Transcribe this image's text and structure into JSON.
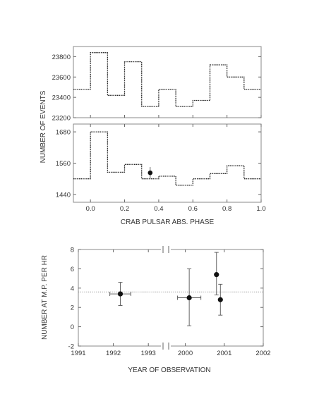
{
  "chart_data": [
    {
      "type": "step",
      "ylabel": "NUMBER OF EVENTS",
      "xlabel": "CRAB PULSAR  ABS. PHASE",
      "xlim": [
        -0.1,
        1.0
      ],
      "x_ticks": [
        "0.0",
        "0.2",
        "0.4",
        "0.6",
        "0.8",
        "1.0"
      ],
      "panels": [
        {
          "name": "upper",
          "ylim": [
            23200,
            23900
          ],
          "y_ticks": [
            "23800",
            "23600",
            "23400",
            "23200"
          ],
          "bin_edges": [
            -0.1,
            0.0,
            0.1,
            0.2,
            0.3,
            0.4,
            0.5,
            0.6,
            0.7,
            0.8,
            0.9,
            1.0
          ],
          "values": [
            23480,
            23840,
            23420,
            23750,
            23310,
            23480,
            23310,
            23370,
            23720,
            23600,
            23480
          ]
        },
        {
          "name": "lower",
          "ylim": [
            1410,
            1710
          ],
          "y_ticks": [
            "1680",
            "1560",
            "1440"
          ],
          "bin_edges": [
            -0.1,
            0.0,
            0.1,
            0.2,
            0.3,
            0.4,
            0.5,
            0.6,
            0.7,
            0.8,
            0.9,
            1.0
          ],
          "values": [
            1500,
            1680,
            1525,
            1555,
            1500,
            1510,
            1475,
            1500,
            1520,
            1550,
            1500
          ],
          "point": {
            "x": 0.35,
            "y": 1523,
            "yerr": 22
          }
        }
      ]
    },
    {
      "type": "scatter",
      "ylabel": "NUMBER AT M.P. PER HR",
      "xlabel": "YEAR OF OBSERVATION",
      "ylim": [
        -2,
        8
      ],
      "y_ticks": [
        "8",
        "6",
        "4",
        "2",
        "0",
        "-2"
      ],
      "x_ticks": [
        "1991",
        "1992",
        "1993",
        "2000",
        "2001",
        "2002"
      ],
      "reference_level": 3.6,
      "points": [
        {
          "x": "1992.2",
          "y": 3.4,
          "xerr": 0.3,
          "yerr_low": 1.2,
          "yerr_high": 1.2
        },
        {
          "x": "2000.1",
          "y": 3.0,
          "xerr": 0.3,
          "yerr_low": 2.9,
          "yerr_high": 3.0
        },
        {
          "x": "2000.8",
          "y": 5.4,
          "xerr": 0.0,
          "yerr_low": 2.1,
          "yerr_high": 2.3
        },
        {
          "x": "2000.9",
          "y": 2.8,
          "xerr": 0.0,
          "yerr_low": 1.6,
          "yerr_high": 1.6
        }
      ]
    }
  ]
}
